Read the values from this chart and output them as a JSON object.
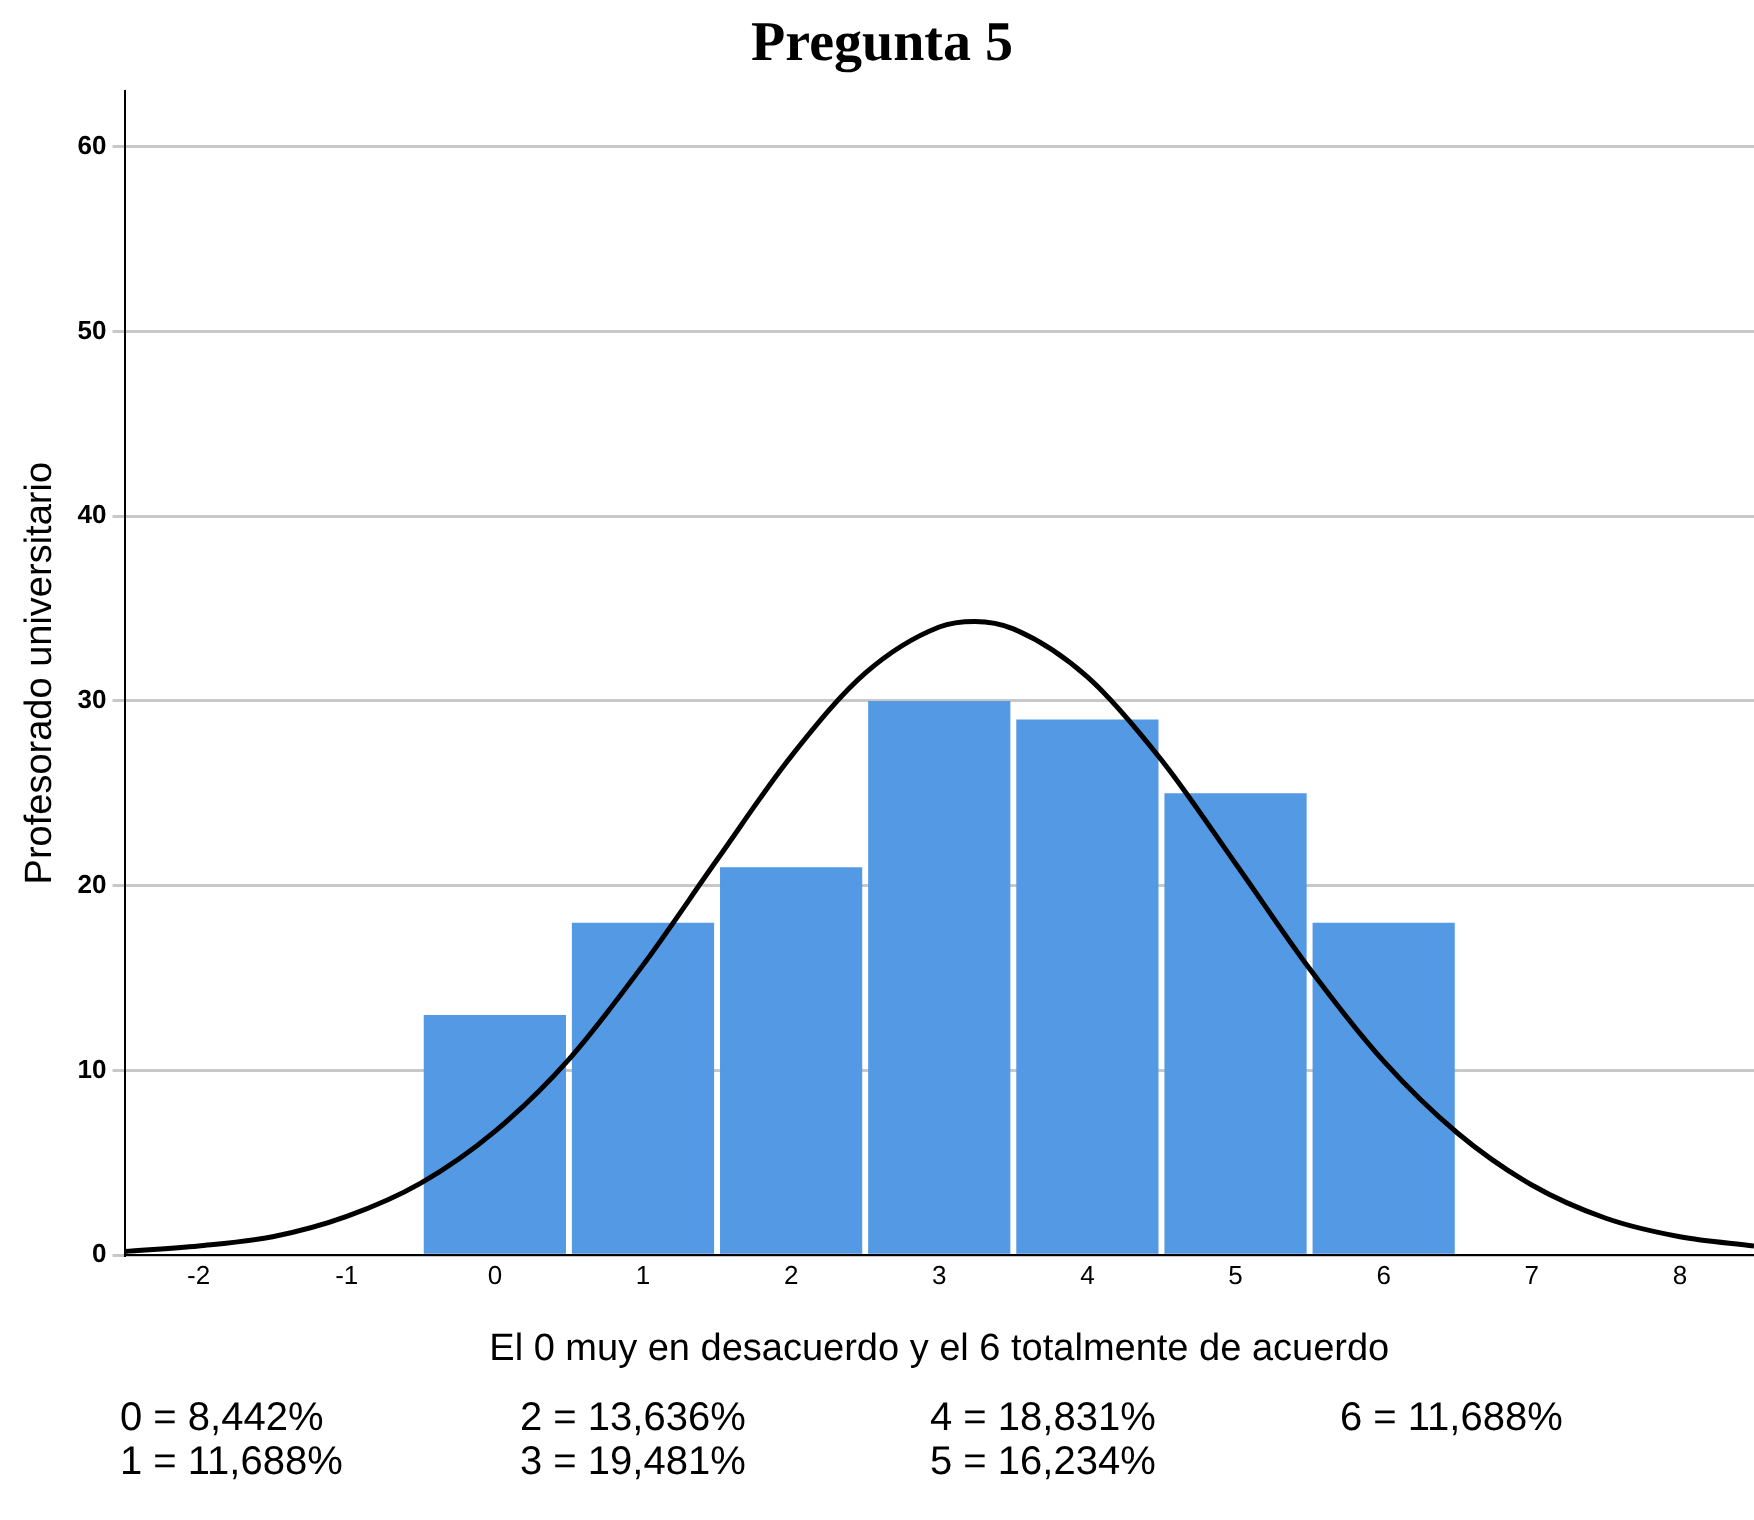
{
  "chart_data": {
    "type": "histogram",
    "title": "Pregunta 5",
    "xlabel": "El 0 muy en desacuerdo y el 6 totalmente de acuerdo",
    "ylabel": "Profesorado universitario",
    "bins": [
      -0.5,
      0.5,
      1.5,
      2.5,
      3.5,
      4.5,
      5.5,
      6.5
    ],
    "series": [
      {
        "color": "#5499e3",
        "values": [
          13,
          18,
          21,
          30,
          29,
          25,
          18
        ]
      },
      {
        "type": "line",
        "color": "#000000",
        "x": [
          -2.5,
          -2,
          -1.5,
          -1,
          -0.5,
          0,
          0.5,
          1,
          1.5,
          2,
          2.5,
          3,
          3.24,
          3.5,
          4,
          4.5,
          5,
          5.5,
          6,
          6.5,
          7,
          7.5,
          8,
          8.5
        ],
        "values": [
          0.2,
          0.5,
          1.0,
          2.1,
          3.9,
          6.7,
          10.6,
          15.7,
          21.4,
          27.0,
          31.5,
          34.0,
          34.3,
          33.9,
          31.3,
          26.8,
          21.2,
          15.5,
          10.5,
          6.6,
          3.8,
          2.0,
          1.0,
          0.5
        ]
      }
    ],
    "xlim": [
      -2.5,
      8.5
    ],
    "xticks": [
      -2,
      -1,
      0,
      1,
      2,
      3,
      4,
      5,
      6,
      7,
      8
    ],
    "ylim": [
      0,
      63
    ],
    "yticks": [
      0,
      10,
      20,
      30,
      40,
      50,
      60
    ],
    "grid": "y",
    "legend": false,
    "marker": "none",
    "annotations": [
      "0 = 8,442%",
      "2 = 13,636%",
      "4 = 18,831%",
      "6 = 11,688%",
      "1 = 11,688%",
      "3 = 19,481%",
      "5 = 16,234%"
    ]
  }
}
